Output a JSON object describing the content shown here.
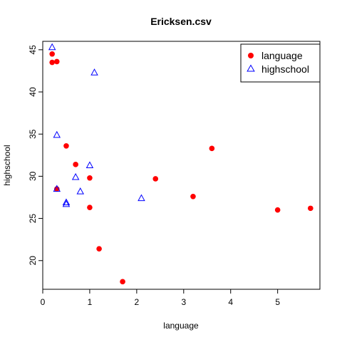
{
  "chart_data": {
    "type": "scatter",
    "title": "Ericksen.csv",
    "xlabel": "language",
    "ylabel": "highschool",
    "xlim": [
      0,
      5.9
    ],
    "ylim": [
      16.6,
      46.0
    ],
    "xticks": [
      "0",
      "1",
      "2",
      "3",
      "4",
      "5"
    ],
    "yticks": [
      "20",
      "25",
      "30",
      "35",
      "40",
      "45"
    ],
    "legend_position": "top-right",
    "grid": false,
    "series": [
      {
        "name": "language",
        "marker": "filled-circle",
        "color": "#ff0000",
        "x": [
          0.2,
          0.2,
          0.3,
          0.3,
          0.5,
          0.7,
          1.0,
          1.0,
          1.2,
          1.7,
          2.4,
          3.2,
          3.6,
          5.0,
          5.7
        ],
        "y": [
          44.5,
          43.5,
          43.6,
          28.5,
          33.6,
          31.4,
          29.8,
          26.3,
          21.4,
          17.5,
          29.7,
          27.6,
          33.3,
          26.0,
          26.2
        ]
      },
      {
        "name": "highschool",
        "marker": "open-triangle",
        "color": "#0000ff",
        "x": [
          0.2,
          0.3,
          0.3,
          0.5,
          0.5,
          0.7,
          0.8,
          1.0,
          1.1,
          2.1
        ],
        "y": [
          45.3,
          34.9,
          28.5,
          26.9,
          26.7,
          29.9,
          28.2,
          31.3,
          42.3,
          27.4
        ]
      }
    ]
  }
}
